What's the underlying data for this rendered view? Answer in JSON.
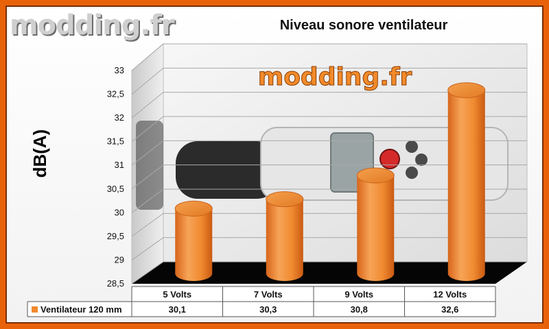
{
  "logo_text": "modding.fr",
  "chart_data": {
    "type": "bar",
    "title": "Niveau sonore ventilateur",
    "ylabel": "dB(A)",
    "xlabel": "",
    "categories": [
      "5 Volts",
      "7 Volts",
      "9 Volts",
      "12 Volts"
    ],
    "series": [
      {
        "name": "Ventilateur 120 mm",
        "values": [
          30.1,
          30.3,
          30.8,
          32.6
        ],
        "value_labels": [
          "30,1",
          "30,3",
          "30,8",
          "32,6"
        ]
      }
    ],
    "ylim": [
      28.5,
      33
    ],
    "yticks": [
      28.5,
      29,
      29.5,
      30,
      30.5,
      31,
      31.5,
      32,
      32.5,
      33
    ],
    "ytick_labels": [
      "28,5",
      "29",
      "29,5",
      "30",
      "30,5",
      "31",
      "31,5",
      "32",
      "32,5",
      "33"
    ],
    "grid": true,
    "legend": "data-table",
    "bar_color": "#f0892f",
    "frame_color": "#e8620a"
  }
}
